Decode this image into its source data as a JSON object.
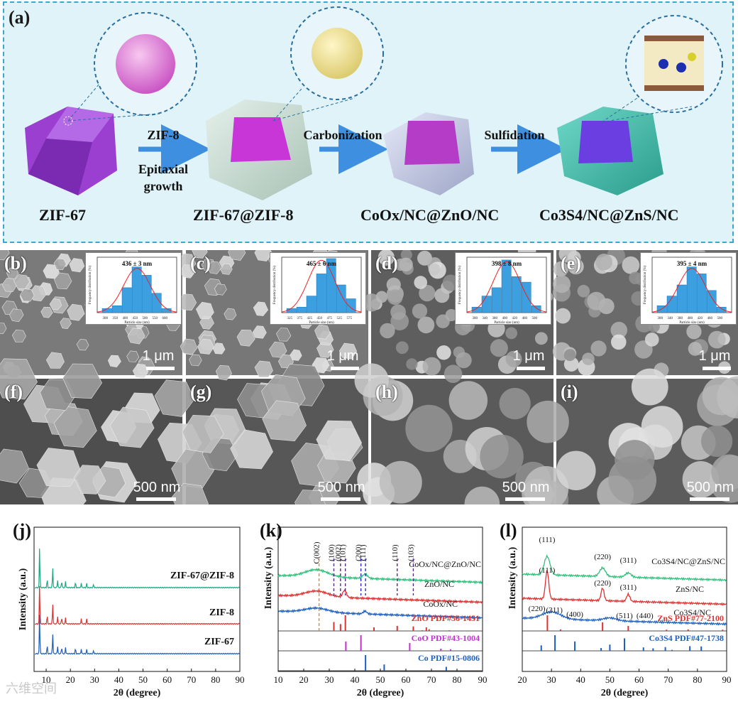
{
  "schematic": {
    "panel_label": "(a)",
    "stages": [
      "ZIF-67",
      "ZIF-67@ZIF-8",
      "CoOx/NC@ZnO/NC",
      "Co3S4/NC@ZnS/NC"
    ],
    "steps": [
      {
        "top": "ZIF-8",
        "bottom1": "Epitaxial",
        "bottom2": "growth"
      },
      {
        "top": "Carbonization"
      },
      {
        "top": "Sulfidation"
      }
    ]
  },
  "sem_panels": [
    {
      "label": "(b)",
      "scale": "1 μm",
      "inset_value": "436 ± 3  nm"
    },
    {
      "label": "(c)",
      "scale": "1 μm",
      "inset_value": "465 ± 6 nm"
    },
    {
      "label": "(d)",
      "scale": "1 μm",
      "inset_value": "398 ± 8 nm"
    },
    {
      "label": "(e)",
      "scale": "1 μm",
      "inset_value": "395 ± 4 nm"
    },
    {
      "label": "(f)",
      "scale": "500 nm"
    },
    {
      "label": "(g)",
      "scale": "500 nm"
    },
    {
      "label": "(h)",
      "scale": "500 nm"
    },
    {
      "label": "(i)",
      "scale": "500 nm"
    }
  ],
  "inset_axes": {
    "ylabel": "Frequency distribution (%)",
    "xlabel": "Particle size (nm)"
  },
  "chart_data": [
    {
      "panel": "(b)",
      "type": "bar",
      "x": [
        300,
        350,
        400,
        450,
        500,
        550,
        600
      ],
      "values": [
        3,
        5,
        18,
        33,
        27,
        14,
        3
      ],
      "ylim": [
        0,
        40
      ]
    },
    {
      "panel": "(c)",
      "type": "bar",
      "x": [
        325,
        375,
        425,
        450,
        475,
        525,
        575
      ],
      "values": [
        3,
        4,
        12,
        28,
        39,
        20,
        10
      ],
      "ylim": [
        0,
        40
      ]
    },
    {
      "panel": "(d)",
      "type": "bar",
      "x": [
        300,
        340,
        380,
        400,
        420,
        460,
        500
      ],
      "values": [
        4,
        12,
        18,
        38,
        26,
        22,
        5
      ],
      "ylim": [
        0,
        40
      ]
    },
    {
      "panel": "(e)",
      "type": "bar",
      "x": [
        300,
        340,
        380,
        400,
        420,
        460,
        500
      ],
      "values": [
        5,
        12,
        20,
        33,
        28,
        16,
        4
      ],
      "ylim": [
        0,
        40
      ]
    },
    {
      "panel": "(j)",
      "type": "line",
      "xlabel": "2θ (degree)",
      "ylabel": "Intensity (a.u.)",
      "xlim": [
        5,
        90
      ],
      "xticks": [
        10,
        20,
        30,
        40,
        50,
        60,
        70,
        80,
        90
      ],
      "series": [
        {
          "name": "ZIF-67@ZIF-8",
          "color": "#1aa884",
          "peaks": [
            7.3,
            10.4,
            12.7,
            14.7,
            16.4,
            18.0,
            22.1,
            24.5,
            26.7,
            29.6
          ]
        },
        {
          "name": "ZIF-8",
          "color": "#e0302f",
          "peaks": [
            7.3,
            10.4,
            12.7,
            14.7,
            16.4,
            18.0,
            24.5,
            26.7
          ]
        },
        {
          "name": "ZIF-67",
          "color": "#1d5fbf",
          "peaks": [
            7.3,
            10.4,
            12.7,
            14.7,
            16.4,
            18.0,
            22.1,
            24.5,
            26.7,
            29.6
          ]
        }
      ]
    },
    {
      "panel": "(k)",
      "type": "line",
      "xlabel": "2θ (degree)",
      "ylabel": "Intensity (a.u.)",
      "xlim": [
        10,
        90
      ],
      "xticks": [
        10,
        20,
        30,
        40,
        50,
        60,
        70,
        80,
        90
      ],
      "series": [
        {
          "name": "CoOx/NC@ZnO/NC",
          "color": "#2cc07a"
        },
        {
          "name": "ZnO/NC",
          "color": "#e0302f"
        },
        {
          "name": "CoOx/NC",
          "color": "#1d5fbf"
        }
      ],
      "peak_labels": [
        "C(002)",
        "(100)",
        "(002)",
        "(101)",
        "(200)",
        "(111)",
        "(110)",
        "(103)"
      ],
      "references": [
        {
          "name": "ZnO PDF#36-1451",
          "color": "#e0302f",
          "x": [
            31.8,
            34.4,
            36.3,
            47.5,
            56.6,
            62.9,
            66.4,
            68.0,
            69.1,
            72.6,
            77.0,
            81.4,
            89.6
          ],
          "values": [
            57,
            44,
            100,
            23,
            32,
            29,
            4,
            23,
            11,
            2,
            4,
            1,
            2
          ]
        },
        {
          "name": "CoO PDF#43-1004",
          "color": "#c030d0",
          "x": [
            36.5,
            42.4,
            61.5,
            73.7,
            77.5
          ],
          "values": [
            60,
            100,
            50,
            14,
            10
          ]
        },
        {
          "name": "Co PDF#15-0806",
          "color": "#1d5fbf",
          "x": [
            44.2,
            51.5,
            75.8
          ],
          "values": [
            100,
            40,
            25
          ]
        }
      ]
    },
    {
      "panel": "(l)",
      "type": "line",
      "xlabel": "2θ (degree)",
      "ylabel": "Intensity (a.u.)",
      "xlim": [
        20,
        90
      ],
      "xticks": [
        20,
        30,
        40,
        50,
        60,
        70,
        80,
        90
      ],
      "series": [
        {
          "name": "Co3S4/NC@ZnS/NC",
          "color": "#2cc07a"
        },
        {
          "name": "ZnS/NC",
          "color": "#e0302f"
        },
        {
          "name": "Co3S4/NC",
          "color": "#1d5fbf"
        }
      ],
      "peak_labels": [
        "(111)",
        "(220)",
        "(311)",
        "(111)",
        "(220)",
        "(311)",
        "(220)",
        "(311)",
        "(400)",
        "(511)",
        "(440)"
      ],
      "references": [
        {
          "name": "ZnS PDF#77-2100",
          "color": "#e0302f",
          "x": [
            28.6,
            33.1,
            47.5,
            56.3,
            69.4,
            76.8,
            88.6
          ],
          "values": [
            100,
            10,
            55,
            32,
            8,
            10,
            8
          ]
        },
        {
          "name": "Co3S4 PDF#47-1738",
          "color": "#1d5fbf",
          "x": [
            26.5,
            31.2,
            38.0,
            47.0,
            50.0,
            55.0,
            61.5,
            64.8,
            69.0,
            71.3,
            77.4,
            81.3
          ],
          "values": [
            35,
            100,
            60,
            18,
            40,
            80,
            22,
            16,
            24,
            6,
            30,
            28
          ]
        }
      ]
    }
  ],
  "watermark": "六维空间"
}
